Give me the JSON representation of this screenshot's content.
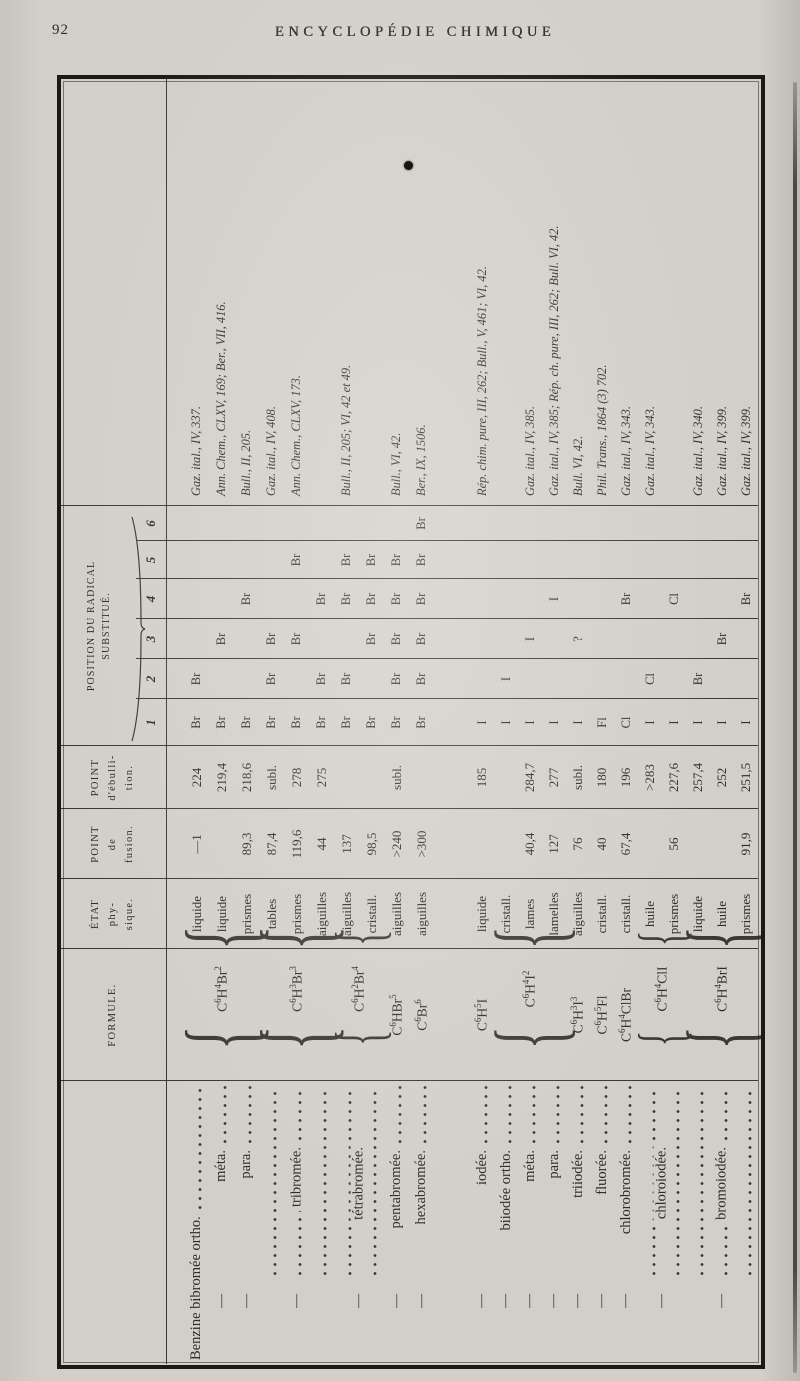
{
  "page": {
    "number": "92",
    "title": "ENCYCLOPÉDIE CHIMIQUE"
  },
  "table": {
    "headers": {
      "formule_label": "FORMULE.",
      "etat_lines": [
        "ÉTAT",
        "phy-",
        "sique."
      ],
      "fusion_lines": [
        "POINT",
        "de",
        "fusion."
      ],
      "ebullition_lines": [
        "POINT",
        "d'ébulli-",
        "tion."
      ],
      "position_label_lines": [
        "POSITION DU RADICAL",
        "SUBSTITUÉ."
      ],
      "position_digits": [
        "1",
        "2",
        "3",
        "4",
        "5",
        "6"
      ]
    },
    "dash_symbol": "—",
    "rows": [
      {
        "label": "Benzine bibromée ortho.",
        "dash": false,
        "start": 0,
        "span": 1
      },
      {
        "label": "méta.",
        "dash": true,
        "start": 1,
        "span": 1
      },
      {
        "label": "para.",
        "dash": true,
        "start": 2,
        "span": 1
      },
      {
        "label": "tribromée.",
        "dash": true,
        "start": 3,
        "span": 3
      },
      {
        "label": "tétrabromée.",
        "dash": true,
        "start": 6,
        "span": 2
      },
      {
        "label": "pentabromée.",
        "dash": true,
        "start": 8,
        "span": 1
      },
      {
        "label": "hexabromée.",
        "dash": true,
        "start": 9,
        "span": 1
      },
      {
        "label": "iodée.",
        "dash": true,
        "start": 10,
        "span": 1
      },
      {
        "label": "biiodée ortho.",
        "dash": true,
        "start": 11,
        "span": 1
      },
      {
        "label": "méta.",
        "dash": true,
        "start": 12,
        "span": 1
      },
      {
        "label": "para.",
        "dash": true,
        "start": 13,
        "span": 1
      },
      {
        "label": "triiodée.",
        "dash": true,
        "start": 14,
        "span": 1
      },
      {
        "label": "fluorée.",
        "dash": true,
        "start": 15,
        "span": 1
      },
      {
        "label": "chlorobromée.",
        "dash": true,
        "start": 16,
        "span": 1
      },
      {
        "label": "chloroiodée.",
        "dash": true,
        "start": 17,
        "span": 2
      },
      {
        "label": "bromoiodée.",
        "dash": true,
        "start": 19,
        "span": 3
      }
    ],
    "formulas": [
      {
        "f": "C^6H^4Br^2",
        "start": 0,
        "span": 3
      },
      {
        "f": "C^6H^3Br^3",
        "start": 3,
        "span": 3
      },
      {
        "f": "C^6H^2Br^4",
        "start": 6,
        "span": 2
      },
      {
        "f": "C^6HBr^5",
        "start": 8,
        "span": 1
      },
      {
        "f": "C^6Br^6",
        "start": 9,
        "span": 1
      },
      {
        "f": "C^6H^5I",
        "start": 10,
        "span": 1
      },
      {
        "f": "C^6H^4I^2",
        "start": 11,
        "span": 3
      },
      {
        "f": "C^6H^3I^3",
        "start": 14,
        "span": 1
      },
      {
        "f": "C^6H^5Fl",
        "start": 15,
        "span": 1
      },
      {
        "f": "C^6H^4ClBr",
        "start": 16,
        "span": 1
      },
      {
        "f": "C^6H^4ClI",
        "start": 17,
        "span": 2
      },
      {
        "f": "C^6H^4BrI",
        "start": 19,
        "span": 3
      }
    ],
    "entries": [
      {
        "etat": "liquide",
        "fusion": "—1",
        "ebullition": "224",
        "pos": [
          "Br",
          "Br",
          "",
          "",
          "",
          ""
        ],
        "ref": "Gaz. ital., IV, 337."
      },
      {
        "etat": "liquide",
        "fusion": "",
        "ebullition": "219,4",
        "pos": [
          "Br",
          "",
          "Br",
          "",
          "",
          ""
        ],
        "ref": "Ann. Chem., CLXV, 169; Ber., VII, 416."
      },
      {
        "etat": "prismes",
        "fusion": "89,3",
        "ebullition": "218,6",
        "pos": [
          "Br",
          "",
          "",
          "Br",
          "",
          ""
        ],
        "ref": "Bull., II, 205."
      },
      {
        "etat": "tables",
        "fusion": "87,4",
        "ebullition": "subl.",
        "pos": [
          "Br",
          "Br",
          "Br",
          "",
          "",
          ""
        ],
        "ref": "Gaz. ital., IV, 408."
      },
      {
        "etat": "prismes",
        "fusion": "119,6",
        "ebullition": "278",
        "pos": [
          "Br",
          "",
          "Br",
          "",
          "Br",
          ""
        ],
        "ref": "Ann. Chem., CLXV, 173."
      },
      {
        "etat": "aiguilles",
        "fusion": "44",
        "ebullition": "275",
        "pos": [
          "Br",
          "Br",
          "",
          "Br",
          "",
          ""
        ],
        "ref": ""
      },
      {
        "etat": "aiguilles",
        "fusion": "137",
        "ebullition": "",
        "pos": [
          "Br",
          "Br",
          "",
          "Br",
          "Br",
          ""
        ],
        "ref": "Bull., II, 205; VI, 42 et 49."
      },
      {
        "etat": "cristall.",
        "fusion": "98,5",
        "ebullition": "",
        "pos": [
          "Br",
          "",
          "Br",
          "Br",
          "Br",
          ""
        ],
        "ref": ""
      },
      {
        "etat": "aiguilles",
        "fusion": ">240",
        "ebullition": "subl.",
        "pos": [
          "Br",
          "Br",
          "Br",
          "Br",
          "Br",
          ""
        ],
        "ref": "Bull., VI, 42."
      },
      {
        "etat": "aiguilles",
        "fusion": ">300",
        "ebullition": "",
        "pos": [
          "Br",
          "Br",
          "Br",
          "Br",
          "Br",
          "Br"
        ],
        "ref": "Ber., IX, 1506."
      },
      {
        "etat": "liquide",
        "fusion": "",
        "ebullition": "185",
        "pos": [
          "I",
          "",
          "",
          "",
          "",
          ""
        ],
        "ref": "Rép. chim. pure, III, 262; Bull., V, 461; VI, 42."
      },
      {
        "etat": "cristall.",
        "fusion": "",
        "ebullition": "",
        "pos": [
          "I",
          "I",
          "",
          "",
          "",
          ""
        ],
        "ref": ""
      },
      {
        "etat": "lames",
        "fusion": "40,4",
        "ebullition": "284,7",
        "pos": [
          "I",
          "",
          "I",
          "",
          "",
          ""
        ],
        "ref": "Gaz. ital., IV, 385."
      },
      {
        "etat": "lamelles",
        "fusion": "127",
        "ebullition": "277",
        "pos": [
          "I",
          "",
          "",
          "I",
          "",
          ""
        ],
        "ref": "Gaz. ital., IV, 385; Rép. ch. pure, III, 262; Bull. VI, 42."
      },
      {
        "etat": "aiguilles",
        "fusion": "76",
        "ebullition": "subl.",
        "pos": [
          "I",
          "",
          "?",
          "",
          "",
          ""
        ],
        "ref": "Bull. VI, 42."
      },
      {
        "etat": "cristall.",
        "fusion": "40",
        "ebullition": "180",
        "pos": [
          "Fl",
          "",
          "",
          "",
          "",
          ""
        ],
        "ref": "Phil. Trans., 1864 (3) 702."
      },
      {
        "etat": "cristall.",
        "fusion": "67,4",
        "ebullition": "196",
        "pos": [
          "Cl",
          "",
          "",
          "Br",
          "",
          ""
        ],
        "ref": "Gaz. ital., IV, 343."
      },
      {
        "etat": "huile",
        "fusion": "",
        "ebullition": ">283",
        "pos": [
          "I",
          "Cl",
          "",
          "",
          "",
          ""
        ],
        "ref": "Gaz. ital., IV, 343."
      },
      {
        "etat": "prismes",
        "fusion": "56",
        "ebullition": "227,6",
        "pos": [
          "I",
          "",
          "",
          "Cl",
          "",
          ""
        ],
        "ref": ""
      },
      {
        "etat": "liquide",
        "fusion": "",
        "ebullition": "257,4",
        "pos": [
          "I",
          "Br",
          "",
          "",
          "",
          ""
        ],
        "ref": "Gaz. ital., IV, 340."
      },
      {
        "etat": "huile",
        "fusion": "",
        "ebullition": "252",
        "pos": [
          "I",
          "",
          "Br",
          "",
          "",
          ""
        ],
        "ref": "Gaz. ital., IV, 399."
      },
      {
        "etat": "prismes",
        "fusion": "91,9",
        "ebullition": "251,5",
        "pos": [
          "I",
          "",
          "",
          "Br",
          "",
          ""
        ],
        "ref": "Gaz. ital., IV, 399."
      }
    ]
  }
}
